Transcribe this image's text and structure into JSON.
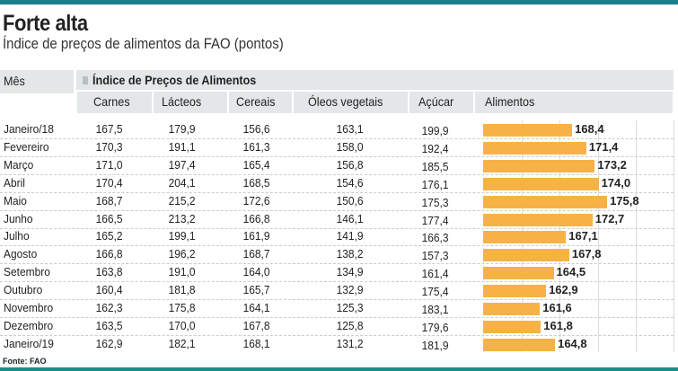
{
  "title": "Forte alta",
  "subtitle": "Índice de preços de alimentos da FAO (pontos)",
  "source": "Fonte: FAO",
  "colors": {
    "bar": "#f7b246",
    "accent": "#1a7f8a",
    "header_bg": "#e4e7e8"
  },
  "chart_data": {
    "type": "table",
    "month_header": "Mês",
    "group_header": "Índice de Preços de Alimentos",
    "columns": [
      "Carnes",
      "Lácteos",
      "Cereais",
      "Óleos vegetais",
      "Açúcar",
      "Alimentos"
    ],
    "bar_column": "Alimentos",
    "rows": [
      {
        "month": "Janeiro/18",
        "values": [
          "167,5",
          "179,9",
          "156,6",
          "163,1",
          "199,9",
          "168,4"
        ],
        "food": 168.4
      },
      {
        "month": "Fevereiro",
        "values": [
          "170,3",
          "191,1",
          "161,3",
          "158,0",
          "192,4",
          "171,4"
        ],
        "food": 171.4
      },
      {
        "month": "Março",
        "values": [
          "171,0",
          "197,4",
          "165,4",
          "156,8",
          "185,5",
          "173,2"
        ],
        "food": 173.2
      },
      {
        "month": "Abril",
        "values": [
          "170,4",
          "204,1",
          "168,5",
          "154,6",
          "176,1",
          "174,0"
        ],
        "food": 174.0
      },
      {
        "month": "Maio",
        "values": [
          "168,7",
          "215,2",
          "172,6",
          "150,6",
          "175,3",
          "175,8"
        ],
        "food": 175.8
      },
      {
        "month": "Junho",
        "values": [
          "166,5",
          "213,2",
          "166,8",
          "146,1",
          "177,4",
          "172,7"
        ],
        "food": 172.7
      },
      {
        "month": "Julho",
        "values": [
          "165,2",
          "199,1",
          "161,9",
          "141,9",
          "166,3",
          "167,1"
        ],
        "food": 167.1
      },
      {
        "month": "Agosto",
        "values": [
          "166,8",
          "196,2",
          "168,7",
          "138,2",
          "157,3",
          "167,8"
        ],
        "food": 167.8
      },
      {
        "month": "Setembro",
        "values": [
          "163,8",
          "191,0",
          "164,0",
          "134,9",
          "161,4",
          "164,5"
        ],
        "food": 164.5
      },
      {
        "month": "Outubro",
        "values": [
          "160,4",
          "181,8",
          "165,7",
          "132,9",
          "175,4",
          "162,9"
        ],
        "food": 162.9
      },
      {
        "month": "Novembro",
        "values": [
          "162,3",
          "175,8",
          "164,1",
          "125,3",
          "183,1",
          "161,6"
        ],
        "food": 161.6
      },
      {
        "month": "Dezembro",
        "values": [
          "163,5",
          "170,0",
          "167,8",
          "125,8",
          "179,6",
          "161,8"
        ],
        "food": 161.8
      },
      {
        "month": "Janeiro/19",
        "values": [
          "162,9",
          "182,1",
          "168,1",
          "131,2",
          "181,9",
          "164,8"
        ],
        "food": 164.8
      }
    ]
  }
}
